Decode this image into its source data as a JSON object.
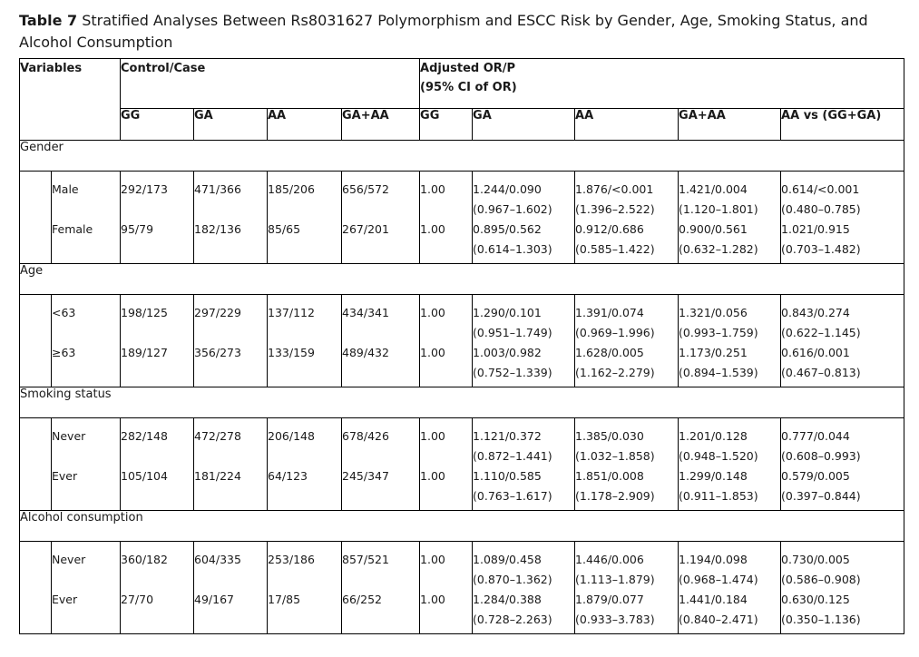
{
  "caption": {
    "label": "Table 7",
    "text": "Stratified Analyses Between Rs8031627 Polymorphism and ESCC Risk by Gender, Age, Smoking Status, and Alcohol Consumption"
  },
  "header": {
    "variables": "Variables",
    "control_case": "Control/Case",
    "adjusted_line1": "Adjusted OR/P",
    "adjusted_line2": "(95% CI of OR)",
    "sub": [
      "GG",
      "GA",
      "AA",
      "GA+AA",
      "GG",
      "GA",
      "AA",
      "GA+AA",
      "AA vs (GG+GA)"
    ]
  },
  "groups": [
    {
      "name": "Gender",
      "rows": [
        {
          "label": "Male",
          "gg": "292/173",
          "ga": "471/366",
          "aa": "185/206",
          "gaaa": "656/572",
          "or_gg": "1.00",
          "or_ga": "1.244/0.090",
          "ci_ga": "(0.967–1.602)",
          "or_aa": "1.876/<0.001",
          "ci_aa": "(1.396–2.522)",
          "or_gaaa": "1.421/0.004",
          "ci_gaaa": "(1.120–1.801)",
          "or_vs": "0.614/<0.001",
          "ci_vs": "(0.480–0.785)"
        },
        {
          "label": "Female",
          "gg": "95/79",
          "ga": "182/136",
          "aa": "85/65",
          "gaaa": "267/201",
          "or_gg": "1.00",
          "or_ga": "0.895/0.562",
          "ci_ga": "(0.614–1.303)",
          "or_aa": "0.912/0.686",
          "ci_aa": "(0.585–1.422)",
          "or_gaaa": "0.900/0.561",
          "ci_gaaa": "(0.632–1.282)",
          "or_vs": "1.021/0.915",
          "ci_vs": "(0.703–1.482)"
        }
      ]
    },
    {
      "name": "Age",
      "rows": [
        {
          "label": "<63",
          "gg": "198/125",
          "ga": "297/229",
          "aa": "137/112",
          "gaaa": "434/341",
          "or_gg": "1.00",
          "or_ga": "1.290/0.101",
          "ci_ga": "(0.951–1.749)",
          "or_aa": "1.391/0.074",
          "ci_aa": "(0.969–1.996)",
          "or_gaaa": "1.321/0.056",
          "ci_gaaa": "(0.993–1.759)",
          "or_vs": "0.843/0.274",
          "ci_vs": "(0.622–1.145)"
        },
        {
          "label": "≥63",
          "gg": "189/127",
          "ga": "356/273",
          "aa": "133/159",
          "gaaa": "489/432",
          "or_gg": "1.00",
          "or_ga": "1.003/0.982",
          "ci_ga": "(0.752–1.339)",
          "or_aa": "1.628/0.005",
          "ci_aa": "(1.162–2.279)",
          "or_gaaa": "1.173/0.251",
          "ci_gaaa": "(0.894–1.539)",
          "or_vs": "0.616/0.001",
          "ci_vs": "(0.467–0.813)"
        }
      ]
    },
    {
      "name": "Smoking status",
      "rows": [
        {
          "label": "Never",
          "gg": "282/148",
          "ga": "472/278",
          "aa": "206/148",
          "gaaa": "678/426",
          "or_gg": "1.00",
          "or_ga": "1.121/0.372",
          "ci_ga": "(0.872–1.441)",
          "or_aa": "1.385/0.030",
          "ci_aa": "(1.032–1.858)",
          "or_gaaa": "1.201/0.128",
          "ci_gaaa": "(0.948–1.520)",
          "or_vs": "0.777/0.044",
          "ci_vs": "(0.608–0.993)"
        },
        {
          "label": "Ever",
          "gg": "105/104",
          "ga": "181/224",
          "aa": "64/123",
          "gaaa": "245/347",
          "or_gg": "1.00",
          "or_ga": "1.110/0.585",
          "ci_ga": "(0.763–1.617)",
          "or_aa": "1.851/0.008",
          "ci_aa": "(1.178–2.909)",
          "or_gaaa": "1.299/0.148",
          "ci_gaaa": "(0.911–1.853)",
          "or_vs": "0.579/0.005",
          "ci_vs": "(0.397–0.844)"
        }
      ]
    },
    {
      "name": "Alcohol consumption",
      "rows": [
        {
          "label": "Never",
          "gg": "360/182",
          "ga": "604/335",
          "aa": "253/186",
          "gaaa": "857/521",
          "or_gg": "1.00",
          "or_ga": "1.089/0.458",
          "ci_ga": "(0.870–1.362)",
          "or_aa": "1.446/0.006",
          "ci_aa": "(1.113–1.879)",
          "or_gaaa": "1.194/0.098",
          "ci_gaaa": "(0.968–1.474)",
          "or_vs": "0.730/0.005",
          "ci_vs": "(0.586–0.908)"
        },
        {
          "label": "Ever",
          "gg": "27/70",
          "ga": "49/167",
          "aa": "17/85",
          "gaaa": "66/252",
          "or_gg": "1.00",
          "or_ga": "1.284/0.388",
          "ci_ga": "(0.728–2.263)",
          "or_aa": "1.879/0.077",
          "ci_aa": "(0.933–3.783)",
          "or_gaaa": "1.441/0.184",
          "ci_gaaa": "(0.840–2.471)",
          "or_vs": "0.630/0.125",
          "ci_vs": "(0.350–1.136)"
        }
      ]
    }
  ]
}
